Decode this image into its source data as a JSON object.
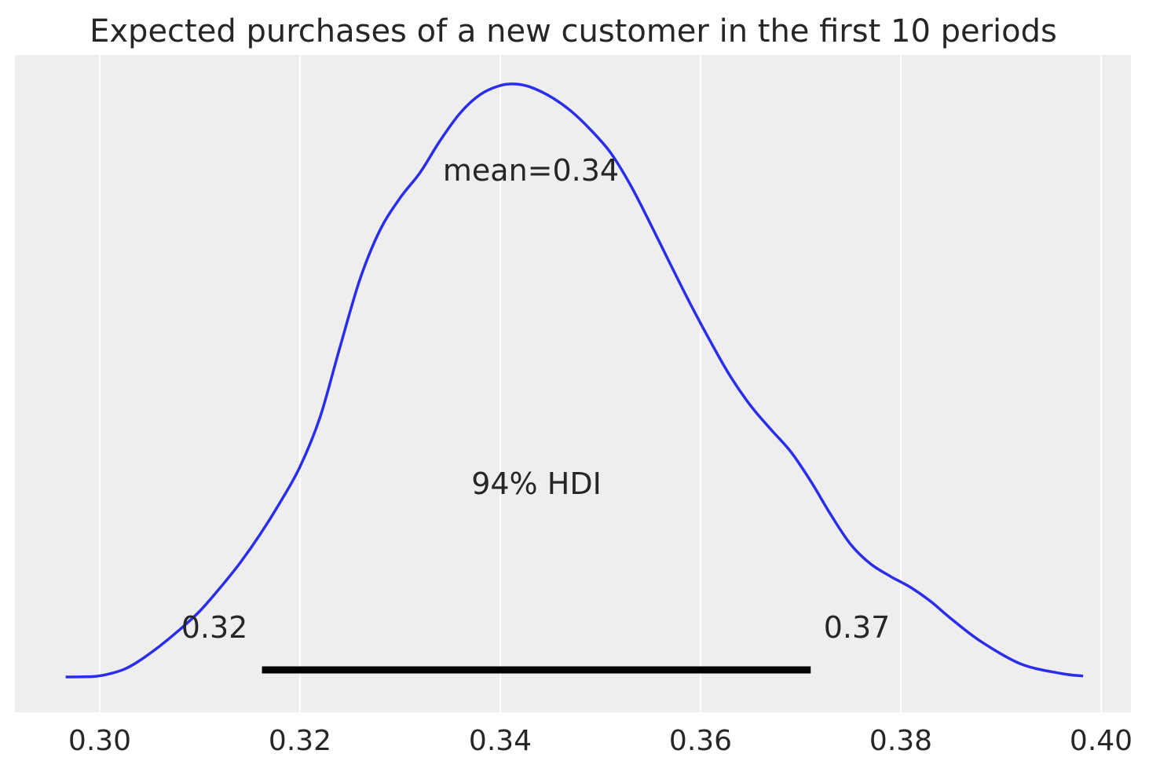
{
  "chart_data": {
    "type": "area",
    "title": "Expected purchases of a new customer in the first 10 periods",
    "xlabel": "",
    "ylabel": "",
    "xlim": [
      0.2933,
      0.4031
    ],
    "ylim": [
      0,
      1.08
    ],
    "xticks": [
      0.3,
      0.32,
      0.34,
      0.36,
      0.38,
      0.4
    ],
    "xtick_labels": [
      "0.30",
      "0.32",
      "0.34",
      "0.36",
      "0.38",
      "0.40"
    ],
    "grid": "vertical",
    "series": [
      {
        "color": "#2a2eec",
        "x": [
          0.2966,
          0.2994,
          0.3009,
          0.3025,
          0.304,
          0.306,
          0.308,
          0.31,
          0.312,
          0.314,
          0.316,
          0.318,
          0.32,
          0.322,
          0.324,
          0.326,
          0.328,
          0.33,
          0.332,
          0.334,
          0.336,
          0.338,
          0.34,
          0.3415,
          0.343,
          0.345,
          0.347,
          0.349,
          0.351,
          0.353,
          0.355,
          0.357,
          0.359,
          0.361,
          0.363,
          0.365,
          0.367,
          0.369,
          0.371,
          0.373,
          0.375,
          0.377,
          0.379,
          0.381,
          0.383,
          0.385,
          0.388,
          0.392,
          0.396,
          0.3982
        ],
        "density": [
          0.0,
          0.001,
          0.006,
          0.016,
          0.033,
          0.062,
          0.095,
          0.132,
          0.178,
          0.228,
          0.285,
          0.349,
          0.421,
          0.52,
          0.661,
          0.797,
          0.895,
          0.959,
          1.01,
          1.074,
          1.129,
          1.166,
          1.184,
          1.187,
          1.181,
          1.162,
          1.134,
          1.096,
          1.05,
          0.985,
          0.907,
          0.826,
          0.746,
          0.671,
          0.601,
          0.543,
          0.496,
          0.451,
          0.392,
          0.325,
          0.265,
          0.226,
          0.201,
          0.179,
          0.151,
          0.117,
          0.071,
          0.026,
          0.007,
          0.002
        ]
      }
    ],
    "mean_label": "mean=0.34",
    "mean_value": 0.34,
    "hdi": {
      "label": "94% HDI",
      "low": 0.3162,
      "high": 0.371,
      "low_label": "0.32",
      "high_label": "0.37"
    }
  },
  "colors": {
    "background": "#eeeeee",
    "grid": "#ffffff",
    "curve": "#2a2eec",
    "hdi_bar": "#000000",
    "text": "#262626"
  }
}
